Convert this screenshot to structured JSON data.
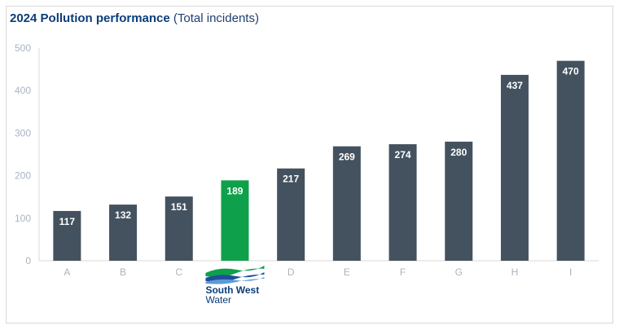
{
  "header": {
    "title_bold": "2024 Pollution performance",
    "title_normal": "(Total incidents)"
  },
  "brand": {
    "name_line1": "South West",
    "name_line2": "Water"
  },
  "chart_data": {
    "type": "bar",
    "title": "2024 Pollution performance (Total incidents)",
    "categories": [
      "A",
      "B",
      "C",
      "",
      "D",
      "E",
      "F",
      "G",
      "H",
      "I"
    ],
    "values": [
      117,
      132,
      151,
      189,
      217,
      269,
      274,
      280,
      437,
      470
    ],
    "highlight_index": 3,
    "ylim": [
      0,
      500
    ],
    "yticks": [
      0,
      100,
      200,
      300,
      400,
      500
    ],
    "grid": false,
    "colors": {
      "bar": "#44525f",
      "highlight": "#0ea04b"
    }
  }
}
